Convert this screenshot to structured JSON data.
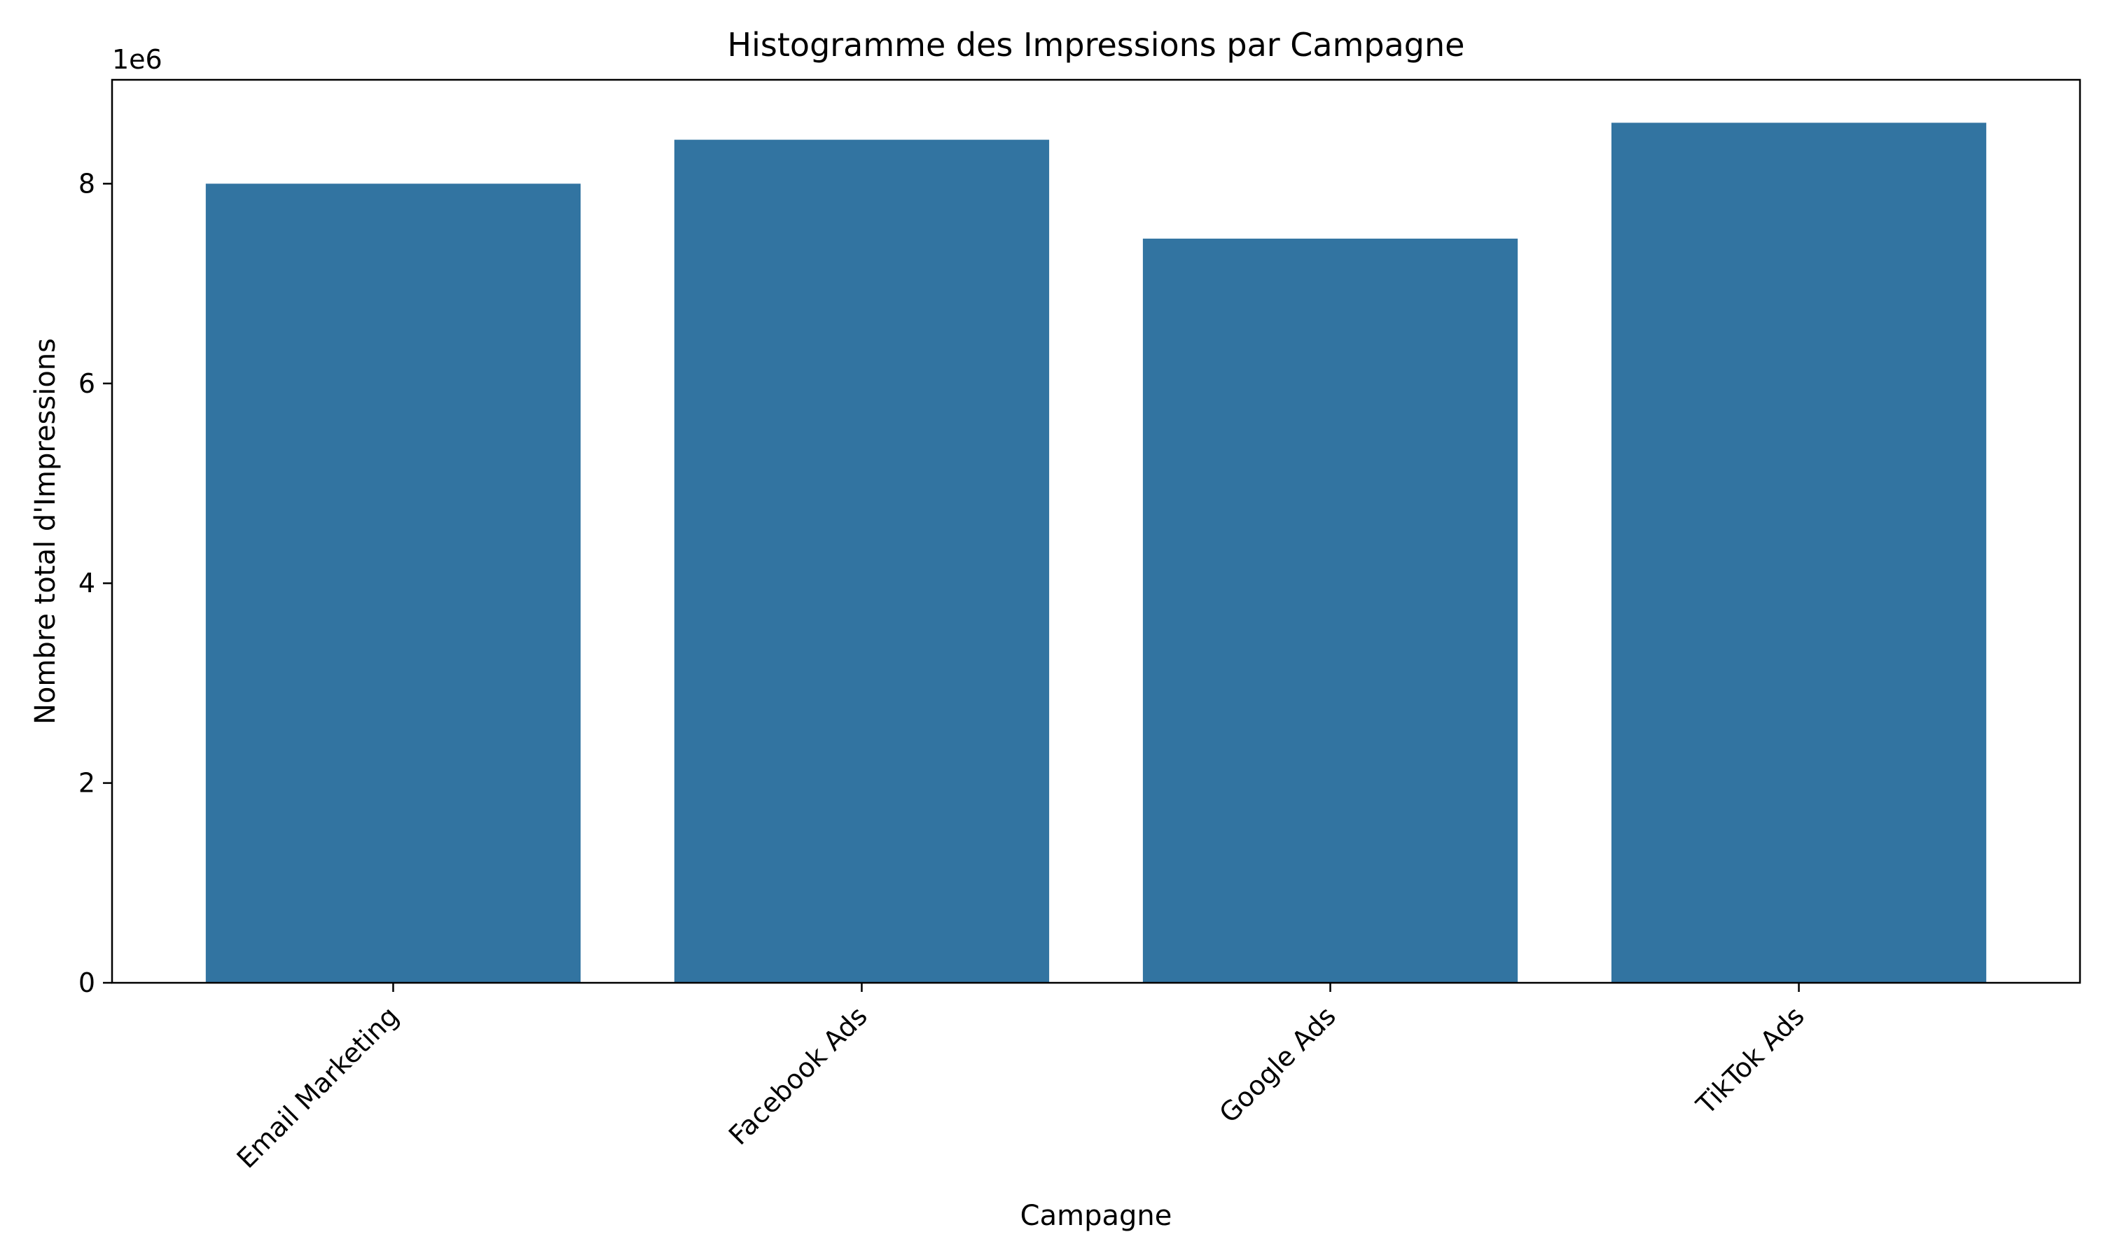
{
  "chart_data": {
    "type": "bar",
    "title": "Histogramme des Impressions par Campagne",
    "xlabel": "Campagne",
    "ylabel": "Nombre total d'Impressions",
    "y_offset_label": "1e6",
    "categories": [
      "Email Marketing",
      "Facebook Ads",
      "Google Ads",
      "TikTok Ads"
    ],
    "values": [
      8000000,
      8440000,
      7450000,
      8610000
    ],
    "ylim": [
      0,
      9040000
    ],
    "yticks": [
      0,
      2000000,
      4000000,
      6000000,
      8000000
    ],
    "ytick_labels": [
      "0",
      "2",
      "4",
      "6",
      "8"
    ],
    "bar_color": "#3274a1",
    "grid": false,
    "legend": "none"
  }
}
